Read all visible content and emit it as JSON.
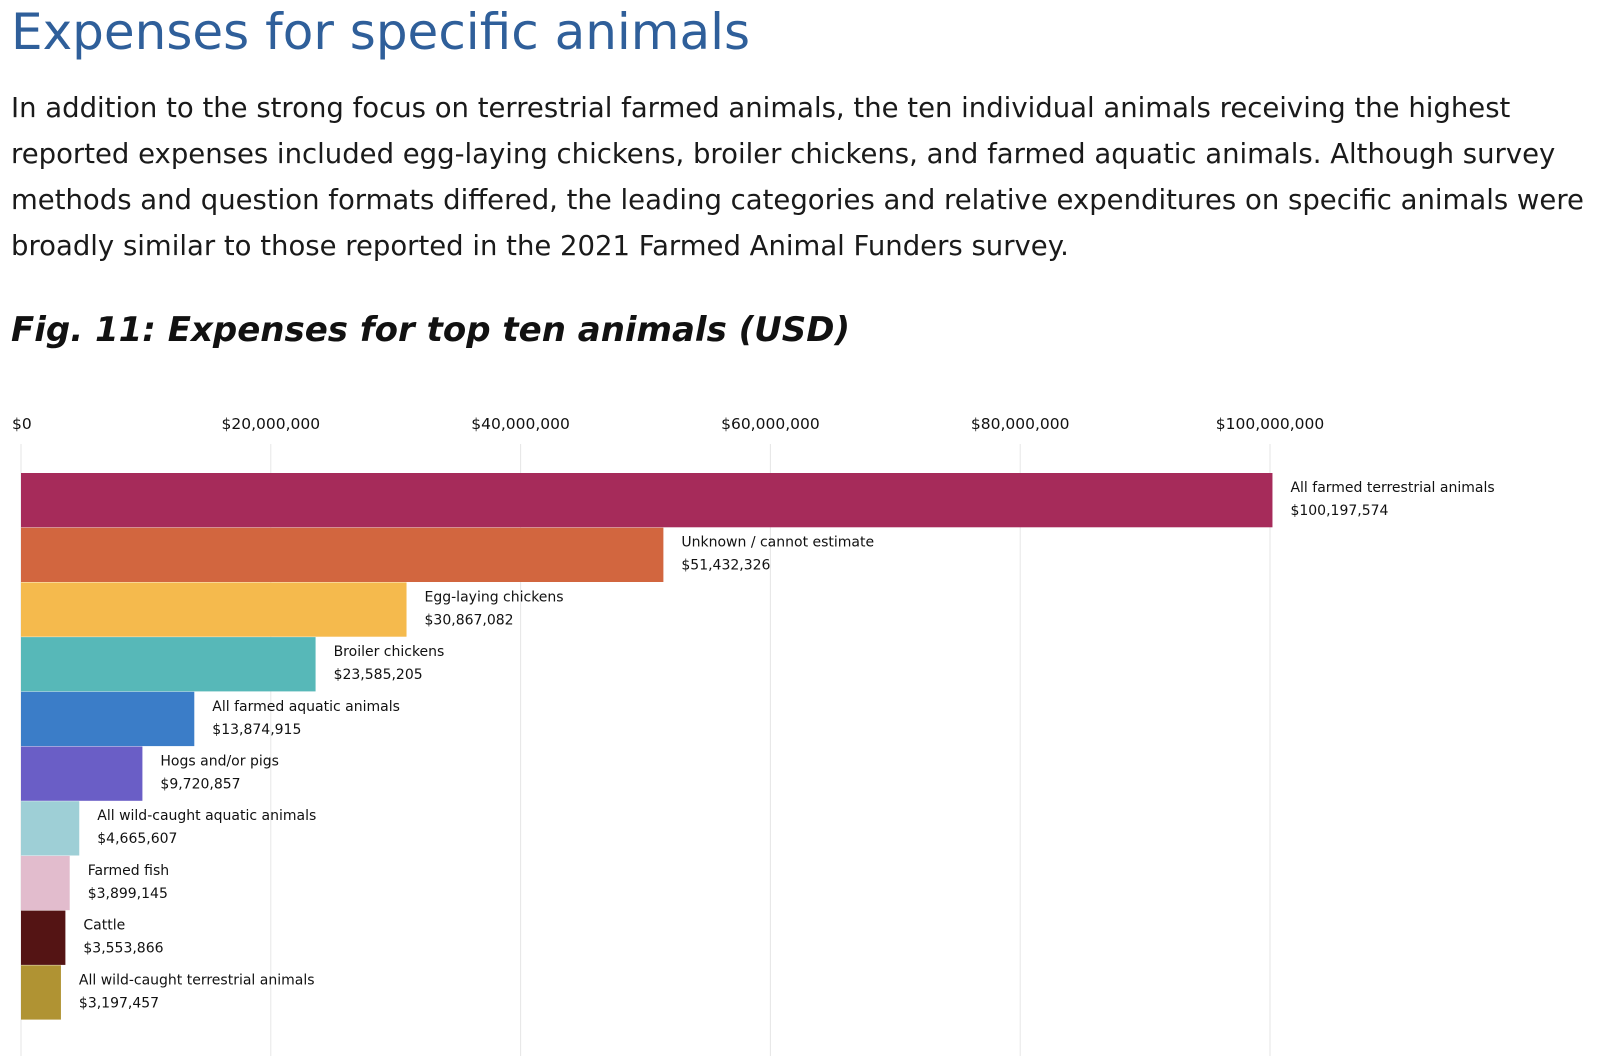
{
  "header": {
    "title": "Expenses for specific animals",
    "intro": "In addition to the strong focus on terrestrial farmed animals, the ten individual animals receiving the highest reported expenses included egg-laying chickens, broiler chickens, and farmed aquatic animals. Although survey methods and question formats differed, the leading categories and relative expenditures on specific animals were broadly similar to those reported in the 2021 Farmed Animal Funders survey.",
    "figure_caption": "Fig. 11: Expenses for top ten animals (USD)"
  },
  "chart_data": {
    "type": "bar",
    "orientation": "horizontal",
    "title": "Fig. 11: Expenses for top ten animals (USD)",
    "xlabel": "",
    "ylabel": "",
    "xlim": [
      0,
      100000000
    ],
    "x_ticks": [
      0,
      20000000,
      40000000,
      60000000,
      80000000,
      100000000
    ],
    "x_tick_labels": [
      "$0",
      "$20,000,000",
      "$40,000,000",
      "$60,000,000",
      "$80,000,000",
      "$100,000,000"
    ],
    "grid": true,
    "categories": [
      "All farmed terrestrial animals",
      "Unknown / cannot estimate",
      "Egg-laying chickens",
      "Broiler chickens",
      "All farmed aquatic animals",
      "Hogs and/or pigs",
      "All wild-caught aquatic animals",
      "Farmed fish",
      "Cattle",
      "All wild-caught terrestrial animals"
    ],
    "values": [
      100197574,
      51432326,
      30867082,
      23585205,
      13874915,
      9720857,
      4665607,
      3899145,
      3553866,
      3197457
    ],
    "value_labels": [
      "$100,197,574",
      "$51,432,326",
      "$30,867,082",
      "$23,585,205",
      "$13,874,915",
      "$9,720,857",
      "$4,665,607",
      "$3,899,145",
      "$3,553,866",
      "$3,197,457"
    ],
    "colors": [
      "#a62b5a",
      "#d2663f",
      "#f5ba4d",
      "#57b8b8",
      "#3b7dc8",
      "#6a5ec6",
      "#9ecfd6",
      "#e2bccd",
      "#541414",
      "#b09333"
    ]
  }
}
